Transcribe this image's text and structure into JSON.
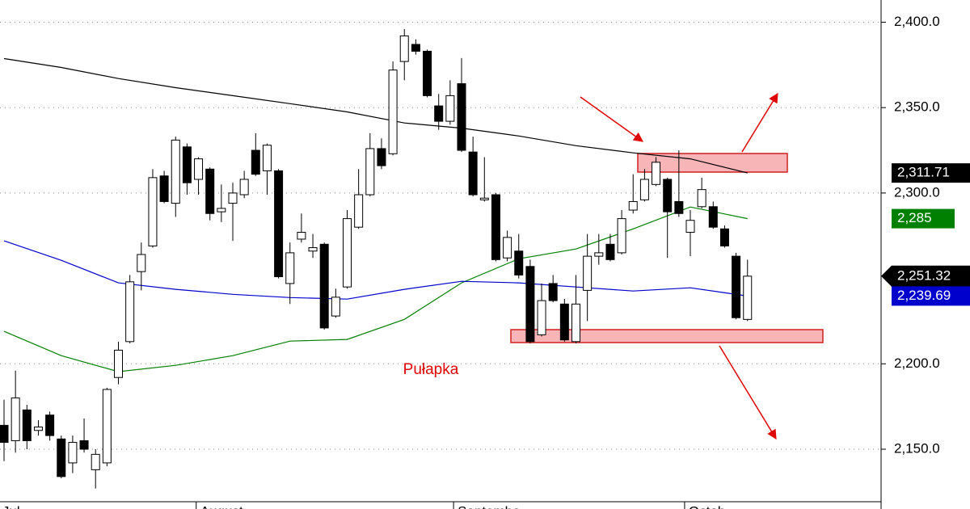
{
  "chart_data": {
    "type": "candlestick",
    "ylim": [
      2115,
      2413
    ],
    "yticks": [
      {
        "value": 2150,
        "label": "2,150.0"
      },
      {
        "value": 2200,
        "label": "2,200.0"
      },
      {
        "value": 2300,
        "label": "2,300.0"
      },
      {
        "value": 2350,
        "label": "2,350.0"
      },
      {
        "value": 2400,
        "label": "2,400.0"
      }
    ],
    "grid": true,
    "months": [
      {
        "index": -0.5,
        "label": "Jul"
      },
      {
        "index": 16.8,
        "label": "August"
      },
      {
        "index": 39.3,
        "label": "Septembe"
      },
      {
        "index": 59.5,
        "label": "Octob"
      }
    ],
    "annotation": "Pułapka",
    "candles": {
      "up_color": "#ffffff",
      "down_color": "#000000",
      "open": [
        2164,
        2155,
        2173,
        2161,
        2170,
        2156,
        2142,
        2155,
        2138,
        2142,
        2192,
        2213,
        2254,
        2269,
        2310,
        2294,
        2327,
        2308,
        2314,
        2289,
        2294,
        2299,
        2325,
        2313,
        2313,
        2247,
        2273,
        2266,
        2270,
        2228,
        2245,
        2280,
        2299,
        2326,
        2323,
        2377,
        2387,
        2383,
        2351,
        2342,
        2364,
        2324,
        2296,
        2299,
        2262,
        2266,
        2257,
        2217,
        2247,
        2235,
        2213,
        2243,
        2263,
        2270,
        2265,
        2290,
        2296,
        2305,
        2308,
        2295,
        2277,
        2292,
        2292,
        2279,
        2263,
        2226
      ],
      "high": [
        2179,
        2196,
        2176,
        2167,
        2172,
        2158,
        2158,
        2168,
        2150,
        2186,
        2213,
        2252,
        2271,
        2314,
        2313,
        2333,
        2329,
        2321,
        2315,
        2305,
        2306,
        2313,
        2335,
        2329,
        2314,
        2271,
        2288,
        2276,
        2271,
        2244,
        2290,
        2314,
        2335,
        2332,
        2377,
        2396,
        2390,
        2384,
        2358,
        2366,
        2379,
        2333,
        2321,
        2300,
        2278,
        2276,
        2261,
        2247,
        2252,
        2238,
        2252,
        2276,
        2276,
        2276,
        2290,
        2311,
        2314,
        2321,
        2309,
        2325,
        2290,
        2309,
        2295,
        2281,
        2265,
        2261
      ],
      "low": [
        2143,
        2148,
        2150,
        2158,
        2155,
        2133,
        2136,
        2148,
        2127,
        2140,
        2188,
        2212,
        2243,
        2268,
        2294,
        2286,
        2299,
        2299,
        2284,
        2283,
        2272,
        2297,
        2310,
        2299,
        2250,
        2235,
        2271,
        2262,
        2220,
        2227,
        2244,
        2279,
        2298,
        2314,
        2322,
        2366,
        2381,
        2356,
        2337,
        2340,
        2324,
        2298,
        2295,
        2260,
        2260,
        2250,
        2212,
        2216,
        2236,
        2213,
        2212,
        2225,
        2258,
        2260,
        2264,
        2288,
        2295,
        2304,
        2262,
        2286,
        2263,
        2291,
        2279,
        2268,
        2226,
        2225
      ],
      "close": [
        2154,
        2180,
        2155,
        2163,
        2158,
        2134,
        2154,
        2150,
        2147,
        2185,
        2208,
        2248,
        2264,
        2309,
        2295,
        2331,
        2306,
        2320,
        2288,
        2291,
        2300,
        2308,
        2311,
        2328,
        2251,
        2265,
        2277,
        2268,
        2221,
        2239,
        2285,
        2299,
        2326,
        2316,
        2372,
        2392,
        2383,
        2357,
        2342,
        2357,
        2325,
        2299,
        2297,
        2261,
        2274,
        2252,
        2213,
        2237,
        2237,
        2214,
        2235,
        2263,
        2265,
        2261,
        2285,
        2295,
        2308,
        2318,
        2289,
        2288,
        2284,
        2302,
        2280,
        2269,
        2227,
        2251.32
      ],
      "last_label": "2,251.32"
    },
    "series": [
      {
        "color": "#000000",
        "x": [
          0,
          5,
          10,
          15,
          20,
          25,
          30,
          35,
          40,
          45,
          50,
          55,
          60,
          65
        ],
        "values": [
          2378.7,
          2373.5,
          2367,
          2361.7,
          2357,
          2352.3,
          2347.5,
          2341,
          2338,
          2333.4,
          2327.7,
          2323.5,
          2320,
          2311.71
        ],
        "last_label": "2,311.71"
      },
      {
        "color": "#008000",
        "x": [
          0,
          5,
          10,
          15,
          20,
          25,
          30,
          35,
          40,
          45,
          50,
          55,
          60,
          65
        ],
        "values": [
          2219,
          2204.8,
          2195.4,
          2199.1,
          2204.8,
          2213.3,
          2214.3,
          2226,
          2247.4,
          2261.5,
          2267.2,
          2279,
          2291.8,
          2285
        ],
        "last_label": "2,285"
      },
      {
        "color": "#0000cc",
        "x": [
          0,
          5,
          10,
          15,
          20,
          25,
          30,
          35,
          40,
          45,
          50,
          55,
          60,
          65
        ],
        "values": [
          2272,
          2260.6,
          2247.4,
          2243.6,
          2240.7,
          2238.8,
          2237.9,
          2243.6,
          2248.3,
          2247.4,
          2245,
          2242.6,
          2244.5,
          2239.69
        ],
        "last_label": "2,239.69"
      }
    ]
  }
}
